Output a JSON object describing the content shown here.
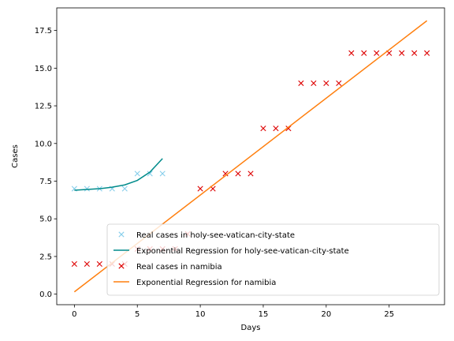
{
  "chart_data": {
    "type": "line",
    "xlabel": "Days",
    "ylabel": "Cases",
    "xlim": [
      -1.4,
      29.4
    ],
    "ylim": [
      -0.7,
      19.0
    ],
    "x_ticks": [
      0,
      5,
      10,
      15,
      20,
      25
    ],
    "y_ticks": [
      0.0,
      2.5,
      5.0,
      7.5,
      10.0,
      12.5,
      15.0,
      17.5
    ],
    "y_tick_labels": [
      "0.0",
      "2.5",
      "5.0",
      "7.5",
      "10.0",
      "12.5",
      "15.0",
      "17.5"
    ],
    "grid": false,
    "legend_position": "lower-right",
    "series": [
      {
        "name": "Real cases in holy-see-vatican-city-state",
        "kind": "scatter",
        "marker": "x",
        "color": "#87ceeb",
        "x": [
          0,
          1,
          2,
          3,
          4,
          5,
          6,
          7
        ],
        "y": [
          7,
          7,
          7,
          7,
          7,
          8,
          8,
          8
        ]
      },
      {
        "name": "Exponential Regression for holy-see-vatican-city-state",
        "kind": "line",
        "color": "#008b8b",
        "x": [
          0,
          1,
          2,
          3,
          4,
          5,
          6,
          7
        ],
        "y": [
          6.9,
          6.95,
          7.0,
          7.1,
          7.25,
          7.55,
          8.1,
          9.0
        ]
      },
      {
        "name": "Real cases in namibia",
        "kind": "scatter",
        "marker": "x",
        "color": "#dd0000",
        "x": [
          0,
          1,
          2,
          3,
          4,
          5,
          6,
          7,
          8,
          9,
          10,
          11,
          12,
          13,
          14,
          15,
          16,
          17,
          18,
          19,
          20,
          21,
          22,
          23,
          24,
          25,
          26,
          27,
          28
        ],
        "y": [
          2,
          2,
          2,
          2,
          2,
          3,
          3,
          3,
          3,
          4,
          7,
          7,
          8,
          8,
          8,
          11,
          11,
          11,
          14,
          14,
          14,
          14,
          16,
          16,
          16,
          16,
          16,
          16,
          16
        ]
      },
      {
        "name": "Exponential Regression for namibia",
        "kind": "line",
        "color": "#ff7f0e",
        "x": [
          0,
          28
        ],
        "y": [
          0.15,
          18.15
        ]
      }
    ]
  }
}
